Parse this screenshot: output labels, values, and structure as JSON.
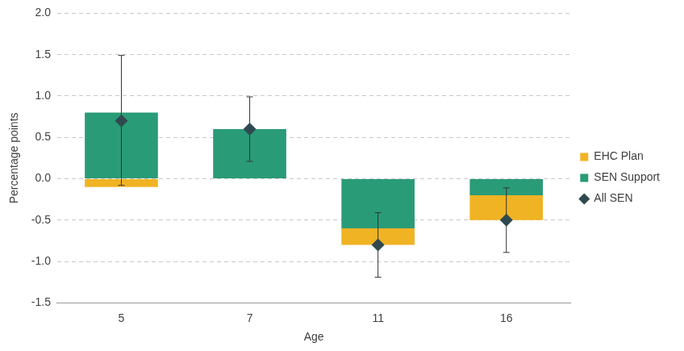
{
  "chart_data": {
    "type": "bar",
    "stacked": true,
    "grid": true,
    "legend": "right",
    "x_label": "Age",
    "y_label": "Percentage points",
    "categories": [
      "5",
      "7",
      "11",
      "16"
    ],
    "ylim": [
      -1.5,
      2.0
    ],
    "yticks": [
      {
        "value": -1.5,
        "label": "-1.5"
      },
      {
        "value": -1.0,
        "label": "-1.0"
      },
      {
        "value": -0.5,
        "label": "-0.5"
      },
      {
        "value": 0,
        "label": "0.0"
      },
      {
        "value": 0.5,
        "label": "0.5"
      },
      {
        "value": 1.0,
        "label": "1.0"
      },
      {
        "value": 1.5,
        "label": "1.5"
      },
      {
        "value": 2.0,
        "label": "2.0"
      }
    ],
    "series": [
      {
        "name": "EHC Plan",
        "type": "bar",
        "color": "#f0b323",
        "values": [
          -0.1,
          0.0,
          -0.2,
          -0.3
        ]
      },
      {
        "name": "SEN Support",
        "type": "bar",
        "color": "#2a9b77",
        "values": [
          0.8,
          0.6,
          -0.6,
          -0.2
        ]
      },
      {
        "name": "All SEN",
        "type": "scatter",
        "marker": "diamond",
        "color": "#2f4a4f",
        "values": [
          0.7,
          0.6,
          -0.8,
          -0.5
        ],
        "error_bars": [
          [
            -0.08,
            1.49
          ],
          [
            0.21,
            0.99
          ],
          [
            -1.19,
            -0.41
          ],
          [
            -0.89,
            -0.11
          ]
        ]
      }
    ]
  }
}
